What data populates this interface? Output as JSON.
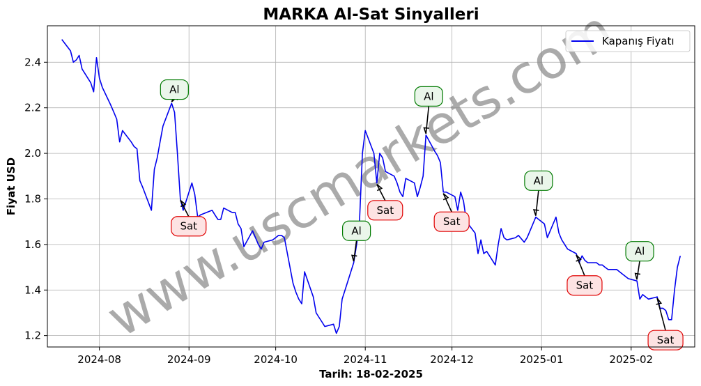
{
  "chart_data": {
    "type": "line",
    "title": "MARKA Al-Sat Sinyalleri",
    "xlabel": "Tarih: 18-02-2025",
    "ylabel": "Fiyat USD",
    "xlim": [
      "2024-07-14",
      "2025-02-23"
    ],
    "ylim": [
      1.15,
      2.56
    ],
    "x_ticks": [
      "2024-08",
      "2024-09",
      "2024-10",
      "2024-11",
      "2024-12",
      "2025-01",
      "2025-02"
    ],
    "y_ticks": [
      1.2,
      1.4,
      1.6,
      1.8,
      2.0,
      2.2,
      2.4
    ],
    "grid": true,
    "legend_position": "upper right",
    "watermark": "www.uscmarkets.com",
    "series": [
      {
        "name": "Kapanış Fiyatı",
        "color": "#0000ee",
        "points": [
          [
            "2024-07-19",
            2.5
          ],
          [
            "2024-07-22",
            2.45
          ],
          [
            "2024-07-23",
            2.4
          ],
          [
            "2024-07-24",
            2.41
          ],
          [
            "2024-07-25",
            2.43
          ],
          [
            "2024-07-26",
            2.37
          ],
          [
            "2024-07-29",
            2.31
          ],
          [
            "2024-07-30",
            2.27
          ],
          [
            "2024-07-31",
            2.42
          ],
          [
            "2024-08-01",
            2.33
          ],
          [
            "2024-08-02",
            2.29
          ],
          [
            "2024-08-05",
            2.21
          ],
          [
            "2024-08-06",
            2.18
          ],
          [
            "2024-08-07",
            2.15
          ],
          [
            "2024-08-08",
            2.05
          ],
          [
            "2024-08-09",
            2.1
          ],
          [
            "2024-08-12",
            2.05
          ],
          [
            "2024-08-13",
            2.03
          ],
          [
            "2024-08-14",
            2.02
          ],
          [
            "2024-08-15",
            1.88
          ],
          [
            "2024-08-16",
            1.85
          ],
          [
            "2024-08-19",
            1.75
          ],
          [
            "2024-08-20",
            1.93
          ],
          [
            "2024-08-21",
            1.98
          ],
          [
            "2024-08-22",
            2.05
          ],
          [
            "2024-08-23",
            2.12
          ],
          [
            "2024-08-26",
            2.22
          ],
          [
            "2024-08-27",
            2.18
          ],
          [
            "2024-08-28",
            2.0
          ],
          [
            "2024-08-29",
            1.8
          ],
          [
            "2024-08-30",
            1.75
          ],
          [
            "2024-09-02",
            1.87
          ],
          [
            "2024-09-03",
            1.82
          ],
          [
            "2024-09-04",
            1.72
          ],
          [
            "2024-09-05",
            1.73
          ],
          [
            "2024-09-09",
            1.75
          ],
          [
            "2024-09-10",
            1.73
          ],
          [
            "2024-09-11",
            1.71
          ],
          [
            "2024-09-12",
            1.71
          ],
          [
            "2024-09-13",
            1.76
          ],
          [
            "2024-09-16",
            1.74
          ],
          [
            "2024-09-17",
            1.74
          ],
          [
            "2024-09-18",
            1.69
          ],
          [
            "2024-09-19",
            1.67
          ],
          [
            "2024-09-20",
            1.59
          ],
          [
            "2024-09-23",
            1.66
          ],
          [
            "2024-09-24",
            1.63
          ],
          [
            "2024-09-25",
            1.6
          ],
          [
            "2024-09-26",
            1.58
          ],
          [
            "2024-09-27",
            1.61
          ],
          [
            "2024-09-30",
            1.62
          ],
          [
            "2024-10-01",
            1.63
          ],
          [
            "2024-10-02",
            1.64
          ],
          [
            "2024-10-03",
            1.64
          ],
          [
            "2024-10-04",
            1.63
          ],
          [
            "2024-10-07",
            1.43
          ],
          [
            "2024-10-08",
            1.39
          ],
          [
            "2024-10-09",
            1.36
          ],
          [
            "2024-10-10",
            1.34
          ],
          [
            "2024-10-11",
            1.48
          ],
          [
            "2024-10-14",
            1.37
          ],
          [
            "2024-10-15",
            1.3
          ],
          [
            "2024-10-16",
            1.28
          ],
          [
            "2024-10-17",
            1.26
          ],
          [
            "2024-10-18",
            1.24
          ],
          [
            "2024-10-21",
            1.25
          ],
          [
            "2024-10-22",
            1.21
          ],
          [
            "2024-10-23",
            1.24
          ],
          [
            "2024-10-24",
            1.36
          ],
          [
            "2024-10-25",
            1.4
          ],
          [
            "2024-10-28",
            1.52
          ],
          [
            "2024-10-29",
            1.6
          ],
          [
            "2024-10-30",
            1.7
          ],
          [
            "2024-10-31",
            2.0
          ],
          [
            "2024-11-01",
            2.1
          ],
          [
            "2024-11-04",
            2.0
          ],
          [
            "2024-11-05",
            1.87
          ],
          [
            "2024-11-06",
            2.0
          ],
          [
            "2024-11-07",
            1.98
          ],
          [
            "2024-11-08",
            1.92
          ],
          [
            "2024-11-11",
            1.9
          ],
          [
            "2024-11-12",
            1.87
          ],
          [
            "2024-11-13",
            1.83
          ],
          [
            "2024-11-14",
            1.81
          ],
          [
            "2024-11-15",
            1.89
          ],
          [
            "2024-11-18",
            1.87
          ],
          [
            "2024-11-19",
            1.81
          ],
          [
            "2024-11-20",
            1.85
          ],
          [
            "2024-11-21",
            1.9
          ],
          [
            "2024-11-22",
            2.08
          ],
          [
            "2024-11-25",
            2.01
          ],
          [
            "2024-11-26",
            1.99
          ],
          [
            "2024-11-27",
            1.96
          ],
          [
            "2024-11-28",
            1.83
          ],
          [
            "2024-11-29",
            1.83
          ],
          [
            "2024-12-02",
            1.81
          ],
          [
            "2024-12-03",
            1.75
          ],
          [
            "2024-12-04",
            1.83
          ],
          [
            "2024-12-05",
            1.79
          ],
          [
            "2024-12-06",
            1.7
          ],
          [
            "2024-12-09",
            1.65
          ],
          [
            "2024-12-10",
            1.56
          ],
          [
            "2024-12-11",
            1.62
          ],
          [
            "2024-12-12",
            1.56
          ],
          [
            "2024-12-13",
            1.57
          ],
          [
            "2024-12-16",
            1.51
          ],
          [
            "2024-12-17",
            1.6
          ],
          [
            "2024-12-18",
            1.67
          ],
          [
            "2024-12-19",
            1.63
          ],
          [
            "2024-12-20",
            1.62
          ],
          [
            "2024-12-23",
            1.63
          ],
          [
            "2024-12-24",
            1.64
          ],
          [
            "2024-12-26",
            1.61
          ],
          [
            "2024-12-27",
            1.63
          ],
          [
            "2024-12-30",
            1.72
          ],
          [
            "2024-12-31",
            1.71
          ],
          [
            "2025-01-02",
            1.69
          ],
          [
            "2025-01-03",
            1.63
          ],
          [
            "2025-01-06",
            1.72
          ],
          [
            "2025-01-07",
            1.65
          ],
          [
            "2025-01-08",
            1.62
          ],
          [
            "2025-01-09",
            1.6
          ],
          [
            "2025-01-10",
            1.58
          ],
          [
            "2025-01-13",
            1.56
          ],
          [
            "2025-01-14",
            1.52
          ],
          [
            "2025-01-15",
            1.55
          ],
          [
            "2025-01-16",
            1.53
          ],
          [
            "2025-01-17",
            1.52
          ],
          [
            "2025-01-20",
            1.52
          ],
          [
            "2025-01-21",
            1.51
          ],
          [
            "2025-01-22",
            1.51
          ],
          [
            "2025-01-23",
            1.5
          ],
          [
            "2025-01-24",
            1.49
          ],
          [
            "2025-01-27",
            1.49
          ],
          [
            "2025-01-28",
            1.48
          ],
          [
            "2025-01-29",
            1.47
          ],
          [
            "2025-01-30",
            1.46
          ],
          [
            "2025-01-31",
            1.45
          ],
          [
            "2025-02-03",
            1.44
          ],
          [
            "2025-02-04",
            1.36
          ],
          [
            "2025-02-05",
            1.38
          ],
          [
            "2025-02-06",
            1.37
          ],
          [
            "2025-02-07",
            1.36
          ],
          [
            "2025-02-10",
            1.37
          ],
          [
            "2025-02-11",
            1.32
          ],
          [
            "2025-02-12",
            1.32
          ],
          [
            "2025-02-13",
            1.31
          ],
          [
            "2025-02-14",
            1.27
          ],
          [
            "2025-02-15",
            1.27
          ],
          [
            "2025-02-16",
            1.4
          ],
          [
            "2025-02-17",
            1.5
          ],
          [
            "2025-02-18",
            1.55
          ]
        ]
      }
    ],
    "signals": [
      {
        "label": "Al",
        "kind": "buy",
        "date": "2024-08-26",
        "price": 2.22,
        "text_price": 2.28
      },
      {
        "label": "Sat",
        "kind": "sell",
        "date": "2024-08-29",
        "price": 1.8,
        "text_price": 1.68
      },
      {
        "label": "Al",
        "kind": "buy",
        "date": "2024-10-28",
        "price": 1.52,
        "text_price": 1.66
      },
      {
        "label": "Sat",
        "kind": "sell",
        "date": "2024-11-05",
        "price": 1.87,
        "text_price": 1.75
      },
      {
        "label": "Al",
        "kind": "buy",
        "date": "2024-11-22",
        "price": 2.08,
        "text_price": 2.25
      },
      {
        "label": "Sat",
        "kind": "sell",
        "date": "2024-11-28",
        "price": 1.83,
        "text_price": 1.7
      },
      {
        "label": "Al",
        "kind": "buy",
        "date": "2024-12-30",
        "price": 1.72,
        "text_price": 1.88
      },
      {
        "label": "Sat",
        "kind": "sell",
        "date": "2025-01-13",
        "price": 1.56,
        "text_price": 1.42
      },
      {
        "label": "Al",
        "kind": "buy",
        "date": "2025-02-03",
        "price": 1.44,
        "text_price": 1.57
      },
      {
        "label": "Sat",
        "kind": "sell",
        "date": "2025-02-10",
        "price": 1.37,
        "text_price": 1.18
      }
    ]
  }
}
